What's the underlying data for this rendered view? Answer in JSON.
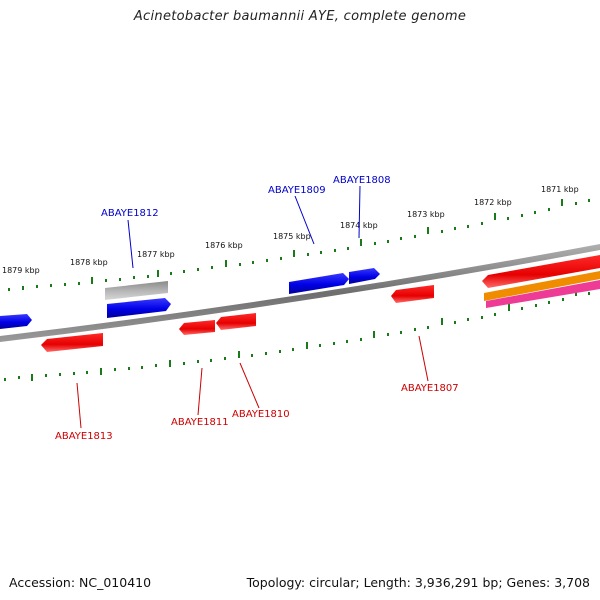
{
  "title": "Acinetobacter baumannii AYE, complete genome",
  "footer": {
    "accession": "Accession: NC_010410",
    "summary": "Topology: circular; Length: 3,936,291 bp; Genes: 3,708"
  },
  "colors": {
    "backbone": "#808080",
    "forward_gene": "#0000ee",
    "reverse_gene": "#ee0000",
    "pseudo_gene": "#b0b0b0",
    "orange_feature": "#f08c00",
    "pink_feature": "#ee3c96",
    "tick": "#1a7a1a",
    "label_forward": "#0000cc",
    "label_reverse": "#cc0000"
  },
  "ruler_labels": [
    "1879 kbp",
    "1878 kbp",
    "1877 kbp",
    "1876 kbp",
    "1875 kbp",
    "1874 kbp",
    "1873 kbp",
    "1872 kbp",
    "1871 kbp"
  ],
  "gene_labels": {
    "forward": [
      "ABAYE1812",
      "ABAYE1809",
      "ABAYE1808"
    ],
    "reverse": [
      "ABAYE1813",
      "ABAYE1811",
      "ABAYE1810",
      "ABAYE1807"
    ]
  }
}
